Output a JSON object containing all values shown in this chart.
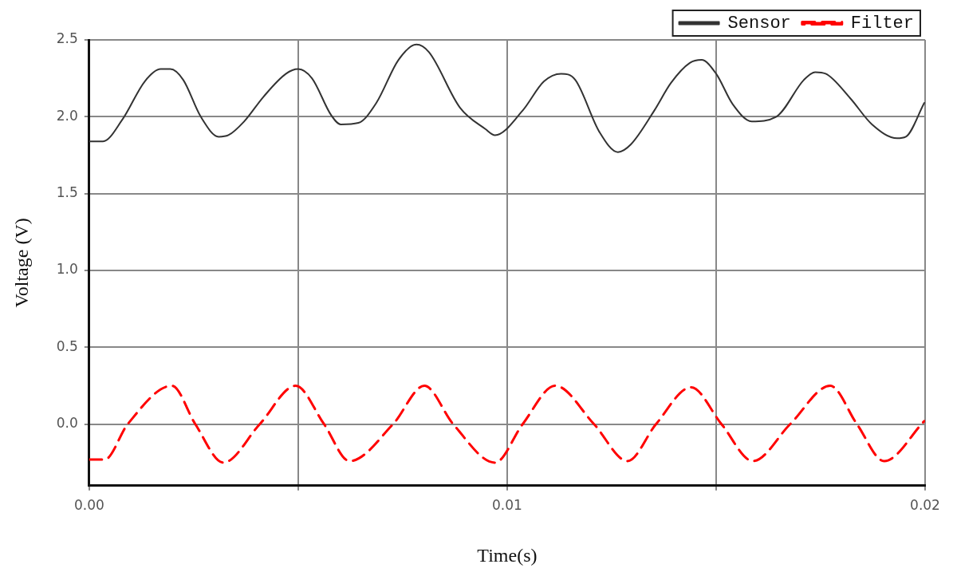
{
  "chart_data": {
    "type": "line",
    "xlabel": "Time(s)",
    "ylabel": "Voltage (V)",
    "xlim": [
      0,
      0.02
    ],
    "ylim": [
      -0.4,
      2.5
    ],
    "xticks": [
      {
        "value": 0,
        "label": "0.00"
      },
      {
        "value": 0.005,
        "label": null
      },
      {
        "value": 0.01,
        "label": "0.01"
      },
      {
        "value": 0.015,
        "label": null
      },
      {
        "value": 0.02,
        "label": "0.02"
      }
    ],
    "yticks": [
      {
        "value": 0,
        "label": "0.0"
      },
      {
        "value": 0.5,
        "label": "0.5"
      },
      {
        "value": 1,
        "label": "1.0"
      },
      {
        "value": 1.5,
        "label": "1.5"
      },
      {
        "value": 2,
        "label": "2.0"
      },
      {
        "value": 2.5,
        "label": "2.5"
      }
    ],
    "grid": true,
    "legend": "top right",
    "marker": "none",
    "series": [
      {
        "name": "Sensor",
        "color": "#333333",
        "line_style": "solid",
        "x": [
          0,
          0.00033,
          0.00079,
          0.00133,
          0.00171,
          0.00194,
          0.00225,
          0.00267,
          0.0031,
          0.00333,
          0.00371,
          0.00417,
          0.00471,
          0.005,
          0.00533,
          0.00579,
          0.00602,
          0.00644,
          0.00687,
          0.0074,
          0.00783,
          0.00813,
          0.00887,
          0.00948,
          0.00971,
          0.01037,
          0.01088,
          0.01129,
          0.01163,
          0.01221,
          0.01265,
          0.01296,
          0.01352,
          0.01392,
          0.01437,
          0.01465,
          0.015,
          0.0154,
          0.01585,
          0.01644,
          0.0171,
          0.01737,
          0.01762,
          0.01821,
          0.01873,
          0.01933,
          0.01954,
          0.01998
        ],
        "values": [
          1.84,
          1.84,
          1.98,
          2.23,
          2.31,
          2.31,
          2.24,
          2.0,
          1.87,
          1.88,
          1.97,
          2.13,
          2.28,
          2.31,
          2.25,
          2.01,
          1.95,
          1.96,
          2.09,
          2.37,
          2.47,
          2.42,
          2.06,
          1.92,
          1.88,
          2.04,
          2.23,
          2.28,
          2.24,
          1.9,
          1.77,
          1.82,
          2.04,
          2.22,
          2.35,
          2.37,
          2.28,
          2.08,
          1.97,
          2.0,
          2.24,
          2.29,
          2.28,
          2.12,
          1.95,
          1.86,
          1.87,
          2.09
        ]
      },
      {
        "name": "Filter",
        "color": "#ff0000",
        "line_style": "dashed",
        "x": [
          0,
          0.00037,
          0.00092,
          0.00198,
          0.00254,
          0.00321,
          0.00408,
          0.00494,
          0.00562,
          0.00623,
          0.00727,
          0.00802,
          0.00871,
          0.00971,
          0.01037,
          0.01115,
          0.01208,
          0.01288,
          0.01356,
          0.0144,
          0.01513,
          0.01588,
          0.01677,
          0.01773,
          0.01837,
          0.01902,
          0.01998
        ],
        "values": [
          -0.23,
          -0.23,
          0,
          0.25,
          0,
          -0.25,
          0,
          0.25,
          0,
          -0.24,
          0,
          0.25,
          0,
          -0.25,
          0,
          0.25,
          0,
          -0.24,
          0,
          0.24,
          0,
          -0.24,
          0,
          0.25,
          0,
          -0.24,
          0.02
        ]
      }
    ]
  }
}
